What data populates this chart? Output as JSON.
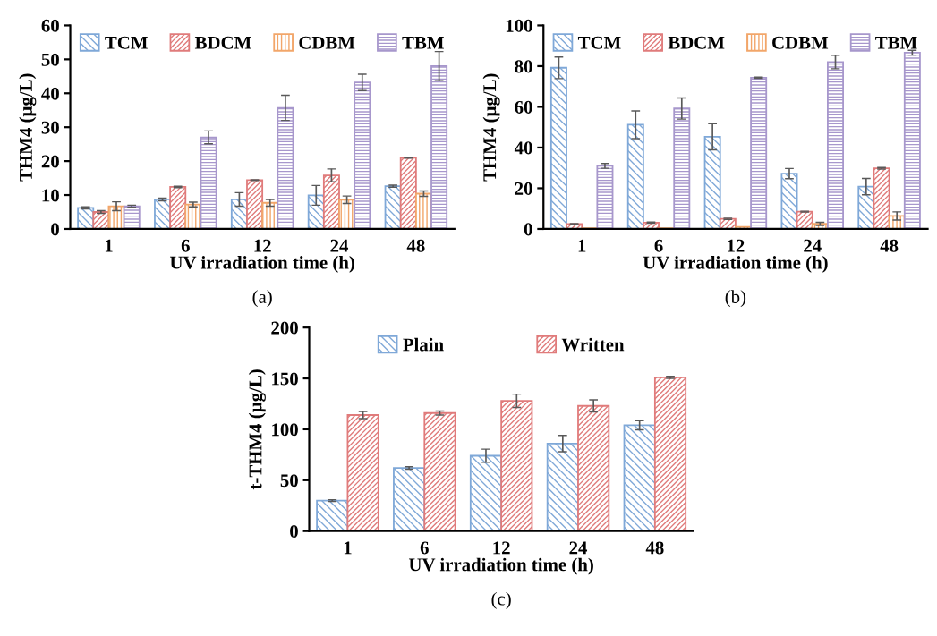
{
  "chart_data": [
    {
      "type": "bar",
      "xlabel": "UV irradiation time (h)",
      "ylabel": "THM4 (µg/L)",
      "categories": [
        "1",
        "6",
        "12",
        "24",
        "48"
      ],
      "ylim": [
        0,
        60
      ],
      "yticks": [
        0,
        10,
        20,
        30,
        40,
        50,
        60
      ],
      "legend": "top",
      "grid": false,
      "annotations": [
        "(a)"
      ],
      "series": [
        {
          "name": "TCM",
          "color": "#7fa8d8",
          "values": [
            6.2,
            8.7,
            8.7,
            9.9,
            12.6
          ],
          "errors": [
            0.3,
            0.4,
            2.0,
            2.9,
            0.3
          ]
        },
        {
          "name": "BDCM",
          "color": "#e07b7b",
          "values": [
            5.0,
            12.4,
            14.4,
            15.8,
            21.0
          ],
          "errors": [
            0.4,
            0.2,
            0.1,
            1.9,
            0.1
          ]
        },
        {
          "name": "CDBM",
          "color": "#f2a66a",
          "values": [
            6.7,
            7.2,
            7.7,
            8.6,
            10.4
          ],
          "errors": [
            1.3,
            0.7,
            1.0,
            1.1,
            0.8
          ]
        },
        {
          "name": "TBM",
          "color": "#a797cc",
          "values": [
            6.7,
            27.0,
            35.7,
            43.2,
            48.0
          ],
          "errors": [
            0.3,
            1.9,
            3.7,
            2.4,
            4.3
          ]
        }
      ]
    },
    {
      "type": "bar",
      "xlabel": "UV irradiation time (h)",
      "ylabel": "THM4 (µg/L)",
      "categories": [
        "1",
        "6",
        "12",
        "24",
        "48"
      ],
      "ylim": [
        0,
        100
      ],
      "yticks": [
        0,
        20,
        40,
        60,
        80,
        100
      ],
      "legend": "top",
      "grid": false,
      "annotations": [
        "(b)"
      ],
      "series": [
        {
          "name": "TCM",
          "color": "#7fa8d8",
          "values": [
            79.2,
            51.2,
            45.3,
            27.2,
            20.8
          ],
          "errors": [
            5.3,
            6.8,
            6.4,
            2.5,
            4.0
          ]
        },
        {
          "name": "BDCM",
          "color": "#e07b7b",
          "values": [
            2.4,
            3.1,
            5.0,
            8.5,
            29.8
          ],
          "errors": [
            0.2,
            0.3,
            0.3,
            0.2,
            0.4
          ]
        },
        {
          "name": "CDBM",
          "color": "#f2a66a",
          "values": [
            0.4,
            0.4,
            1.0,
            2.5,
            6.4
          ],
          "errors": [
            null,
            null,
            null,
            0.8,
            2.0
          ]
        },
        {
          "name": "TBM",
          "color": "#a797cc",
          "values": [
            31.0,
            59.2,
            74.3,
            82.0,
            86.6
          ],
          "errors": [
            1.2,
            5.2,
            0.3,
            3.3,
            1.2
          ]
        }
      ]
    },
    {
      "type": "bar",
      "xlabel": "UV irradiation time (h)",
      "ylabel": "t-THM4 (µg/L)",
      "categories": [
        "1",
        "6",
        "12",
        "24",
        "48"
      ],
      "ylim": [
        0,
        200
      ],
      "yticks": [
        0,
        50,
        100,
        150,
        200
      ],
      "legend": "top",
      "grid": false,
      "annotations": [
        "(c)"
      ],
      "series": [
        {
          "name": "Plain",
          "color": "#7fa8d8",
          "values": [
            30,
            62,
            74,
            86,
            104
          ],
          "errors": [
            0.8,
            1.2,
            6.5,
            8.0,
            4.5
          ]
        },
        {
          "name": "Written",
          "color": "#e07b7b",
          "values": [
            114,
            116,
            128,
            123,
            151
          ],
          "errors": [
            3.5,
            2.0,
            6.5,
            6.0,
            1.0
          ]
        }
      ]
    }
  ]
}
